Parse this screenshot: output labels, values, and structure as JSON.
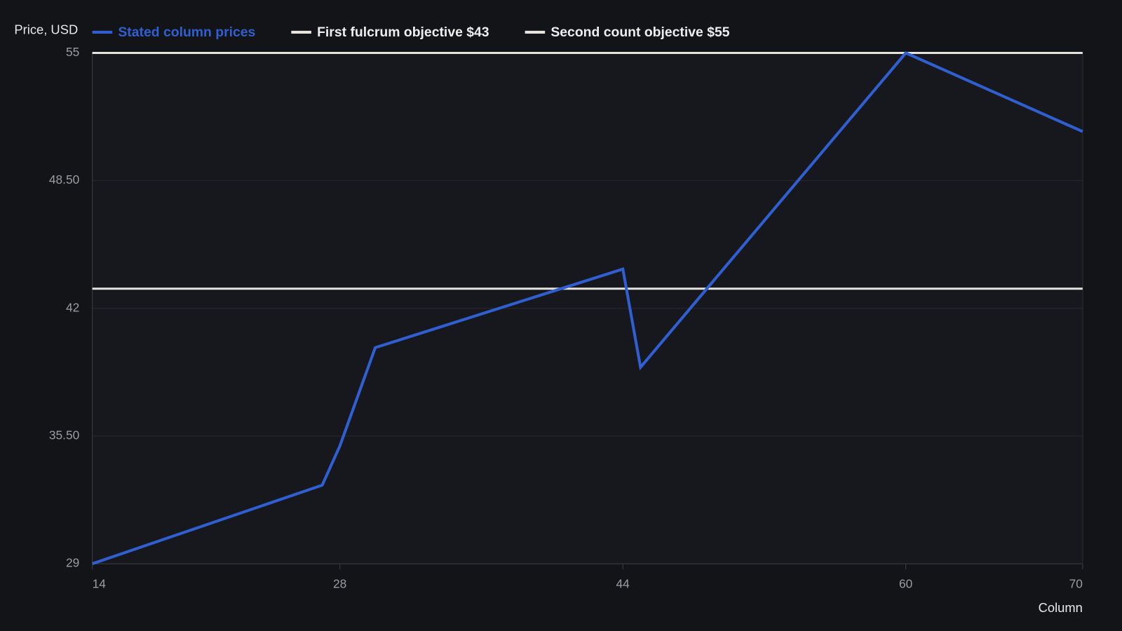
{
  "chart_data": {
    "type": "line",
    "y_label": "Price, USD",
    "x_label": "Column",
    "x": [
      14,
      27,
      28,
      30,
      44,
      45,
      60,
      70
    ],
    "series": [
      {
        "name": "Stated column prices",
        "color": "#2f5fd0",
        "values": [
          29,
          33,
          35,
          40,
          44,
          39,
          55,
          51
        ]
      }
    ],
    "reference_lines": [
      {
        "name": "First fulcrum objective $43",
        "value": 43,
        "color": "#e6e3dc"
      },
      {
        "name": "Second count objective $55",
        "value": 55,
        "color": "#e6e3dc"
      }
    ],
    "xlim": [
      14,
      70
    ],
    "xticks": [
      14,
      28,
      44,
      60,
      70
    ],
    "ylim": [
      29,
      55
    ],
    "yticks": [
      29,
      {
        "value": 35.5,
        "label": "35.50"
      },
      42,
      {
        "value": 48.5,
        "label": "48.50"
      },
      55
    ],
    "grid": true
  }
}
